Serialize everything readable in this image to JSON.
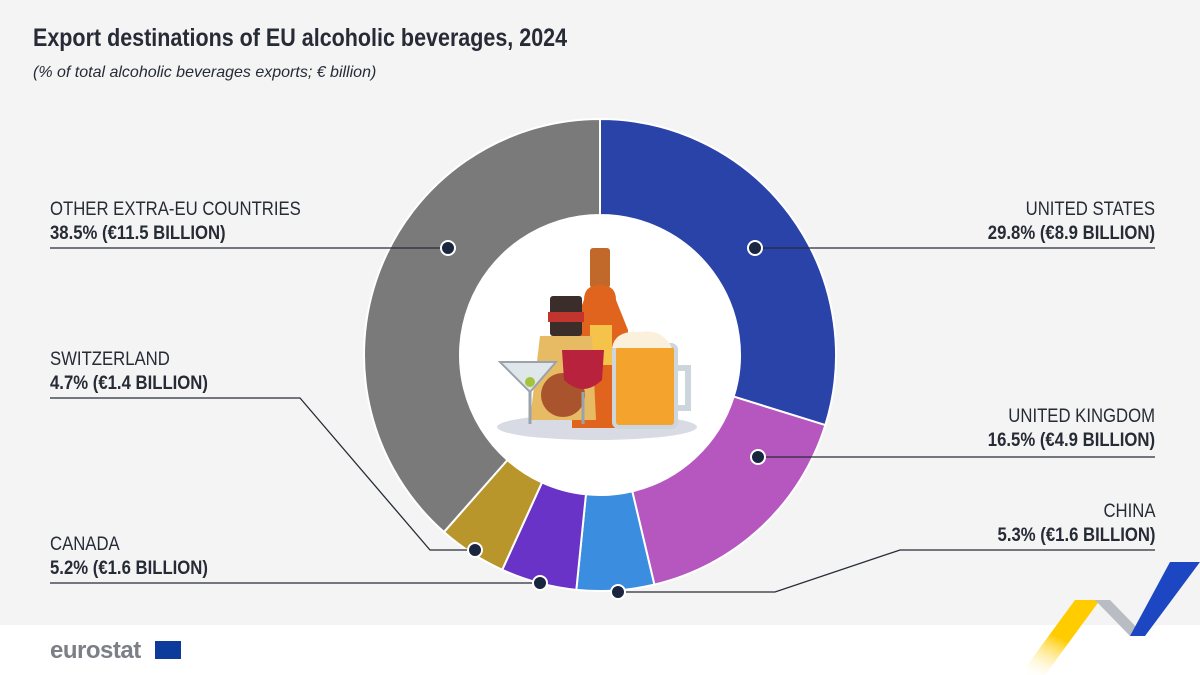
{
  "chart_data": {
    "type": "pie",
    "style": "donut",
    "title": "Export destinations of EU alcoholic beverages, 2024",
    "subtitle": "(% of total alcoholic beverages exports; € billion)",
    "slices": [
      {
        "name": "UNITED STATES",
        "value": 29.8,
        "label": "29.8% (€8.9 BILLION)",
        "color": "#2a43a8"
      },
      {
        "name": "UNITED KINGDOM",
        "value": 16.5,
        "label": "16.5% (€4.9 BILLION)",
        "color": "#b557bf"
      },
      {
        "name": "CHINA",
        "value": 5.3,
        "label": "5.3% (€1.6 BILLION)",
        "color": "#3b8de0"
      },
      {
        "name": "CANADA",
        "value": 5.2,
        "label": "5.2% (€1.6 BILLION)",
        "color": "#6933c7"
      },
      {
        "name": "SWITZERLAND",
        "value": 4.7,
        "label": "4.7% (€1.4 BILLION)",
        "color": "#b8962b"
      },
      {
        "name": "OTHER EXTRA-EU COUNTRIES",
        "value": 38.5,
        "label": "38.5% (€11.5 BILLION)",
        "color": "#7a7a7a"
      }
    ],
    "start": "top",
    "direction": "clockwise"
  },
  "footer": {
    "logo": "eurostat"
  }
}
